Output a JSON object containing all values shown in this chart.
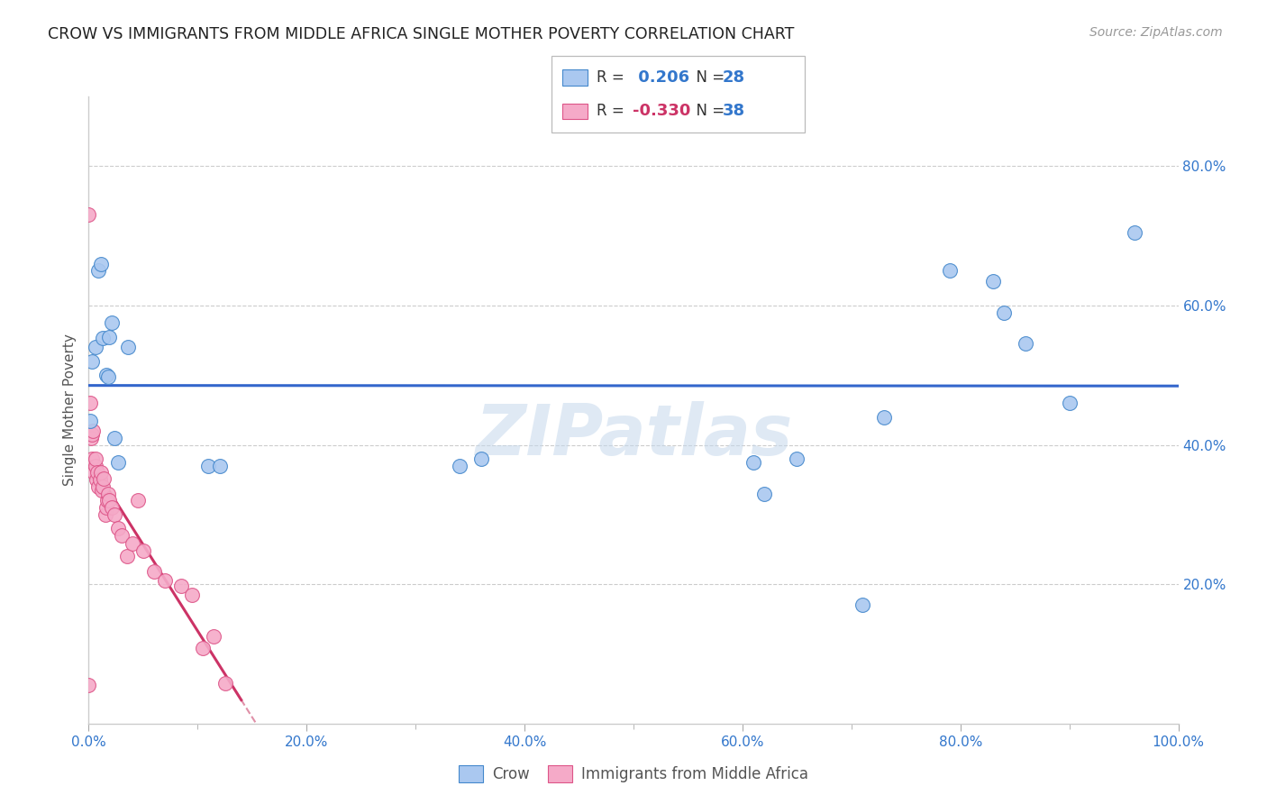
{
  "title": "CROW VS IMMIGRANTS FROM MIDDLE AFRICA SINGLE MOTHER POVERTY CORRELATION CHART",
  "source": "Source: ZipAtlas.com",
  "ylabel": "Single Mother Poverty",
  "legend_labels": [
    "Crow",
    "Immigrants from Middle Africa"
  ],
  "crow_R": 0.206,
  "crow_N": 28,
  "imm_R": -0.33,
  "imm_N": 38,
  "crow_color": "#aac8f0",
  "imm_color": "#f5aac8",
  "crow_edge_color": "#4488cc",
  "imm_edge_color": "#dd5588",
  "crow_line_color": "#3366cc",
  "imm_line_color": "#cc3366",
  "imm_dash_color": "#e090a8",
  "watermark": "ZIPatlas",
  "xlim": [
    0.0,
    1.0
  ],
  "ylim": [
    0.0,
    0.9
  ],
  "xticks": [
    0.0,
    0.2,
    0.4,
    0.6,
    0.8,
    1.0
  ],
  "yticks": [
    0.2,
    0.4,
    0.6,
    0.8
  ],
  "crow_x": [
    0.001,
    0.003,
    0.006,
    0.009,
    0.011,
    0.013,
    0.016,
    0.018,
    0.019,
    0.021,
    0.024,
    0.027,
    0.036,
    0.11,
    0.12,
    0.34,
    0.36,
    0.61,
    0.62,
    0.65,
    0.71,
    0.73,
    0.79,
    0.83,
    0.84,
    0.86,
    0.9,
    0.96
  ],
  "crow_y": [
    0.435,
    0.52,
    0.54,
    0.65,
    0.66,
    0.553,
    0.5,
    0.498,
    0.555,
    0.575,
    0.41,
    0.375,
    0.54,
    0.37,
    0.37,
    0.37,
    0.38,
    0.375,
    0.33,
    0.38,
    0.17,
    0.44,
    0.65,
    0.635,
    0.59,
    0.545,
    0.46,
    0.705
  ],
  "imm_x": [
    0.0,
    0.001,
    0.002,
    0.003,
    0.003,
    0.004,
    0.005,
    0.006,
    0.006,
    0.007,
    0.008,
    0.009,
    0.01,
    0.011,
    0.012,
    0.013,
    0.014,
    0.015,
    0.016,
    0.017,
    0.018,
    0.019,
    0.021,
    0.024,
    0.027,
    0.03,
    0.035,
    0.04,
    0.045,
    0.05,
    0.06,
    0.07,
    0.085,
    0.095,
    0.105,
    0.115,
    0.125,
    0.0
  ],
  "imm_y": [
    0.73,
    0.46,
    0.41,
    0.38,
    0.415,
    0.42,
    0.36,
    0.37,
    0.38,
    0.35,
    0.36,
    0.34,
    0.35,
    0.36,
    0.335,
    0.34,
    0.352,
    0.3,
    0.31,
    0.32,
    0.33,
    0.32,
    0.31,
    0.3,
    0.28,
    0.27,
    0.24,
    0.258,
    0.32,
    0.248,
    0.218,
    0.205,
    0.198,
    0.185,
    0.108,
    0.125,
    0.058,
    0.055
  ]
}
